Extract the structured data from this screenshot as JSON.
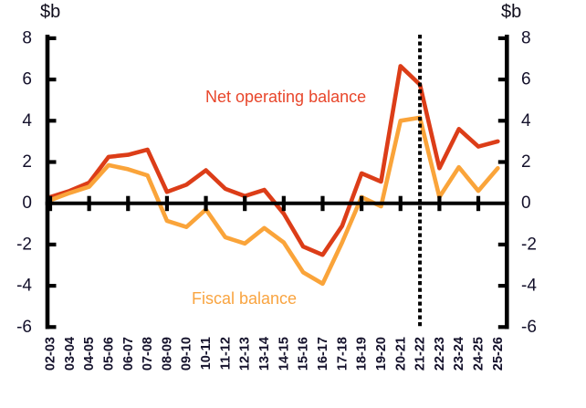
{
  "chart": {
    "left_axis_unit": "$b",
    "right_axis_unit": "$b"
  },
  "chart_data": {
    "type": "line",
    "title": "",
    "categories": [
      "02-03",
      "03-04",
      "04-05",
      "05-06",
      "06-07",
      "07-08",
      "08-09",
      "09-10",
      "10-11",
      "11-12",
      "12-13",
      "13-14",
      "14-15",
      "15-16",
      "16-17",
      "17-18",
      "18-19",
      "19-20",
      "20-21",
      "21-22",
      "22-23",
      "23-24",
      "24-25",
      "25-26"
    ],
    "series": [
      {
        "name": "Net operating balance",
        "color": "#dc3d18",
        "label_color": "#e8462b",
        "values": [
          0.3,
          0.6,
          1.0,
          2.25,
          2.35,
          2.6,
          0.55,
          0.9,
          1.6,
          0.7,
          0.35,
          0.65,
          -0.5,
          -2.1,
          -2.5,
          -1.1,
          1.45,
          1.05,
          6.65,
          5.75,
          1.7,
          3.6,
          2.75,
          3.0
        ]
      },
      {
        "name": "Fiscal balance",
        "color": "#faa43a",
        "label_color": "#f9a440",
        "values": [
          0.15,
          0.5,
          0.8,
          1.85,
          1.65,
          1.35,
          -0.85,
          -1.15,
          -0.3,
          -1.65,
          -1.95,
          -1.2,
          -1.9,
          -3.35,
          -3.9,
          -1.9,
          0.3,
          -0.15,
          4.0,
          4.15,
          0.3,
          1.75,
          0.6,
          1.7
        ]
      }
    ],
    "ylabel_left": "$b",
    "ylabel_right": "$b",
    "ylim": [
      -6,
      8
    ],
    "yticks": [
      8,
      6,
      4,
      2,
      0,
      -2,
      -4,
      -6
    ],
    "x_ticks_every": 2,
    "reference_line_x": "21-22",
    "reference_line_style": "dotted-vertical-black",
    "grid": false,
    "legend": "inline-labels",
    "axis_color": "#000000"
  }
}
